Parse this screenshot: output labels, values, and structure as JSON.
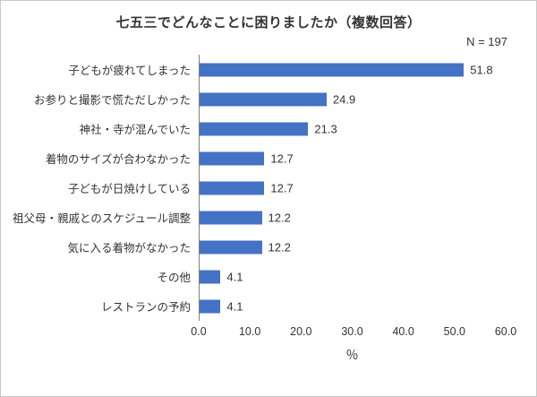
{
  "chart_data": {
    "type": "bar",
    "orientation": "horizontal",
    "title": "七五三でどんなことに困りましたか（複数回答）",
    "n_label": "N = 197",
    "categories": [
      "子どもが疲れてしまった",
      "お参りと撮影で慌ただしかった",
      "神社・寺が混んでいた",
      "着物のサイズが合わなかった",
      "子どもが日焼けしている",
      "祖父母・親戚とのスケジュール調整",
      "気に入る着物がなかった",
      "その他",
      "レストランの予約"
    ],
    "values": [
      51.8,
      24.9,
      21.3,
      12.7,
      12.7,
      12.2,
      12.2,
      4.1,
      4.1
    ],
    "xlabel": "％",
    "xlim": [
      0,
      60
    ],
    "x_ticks": [
      "0.0",
      "10.0",
      "20.0",
      "30.0",
      "40.0",
      "50.0",
      "60.0"
    ],
    "bar_color": "#4472c4",
    "grid": false,
    "legend": false
  }
}
